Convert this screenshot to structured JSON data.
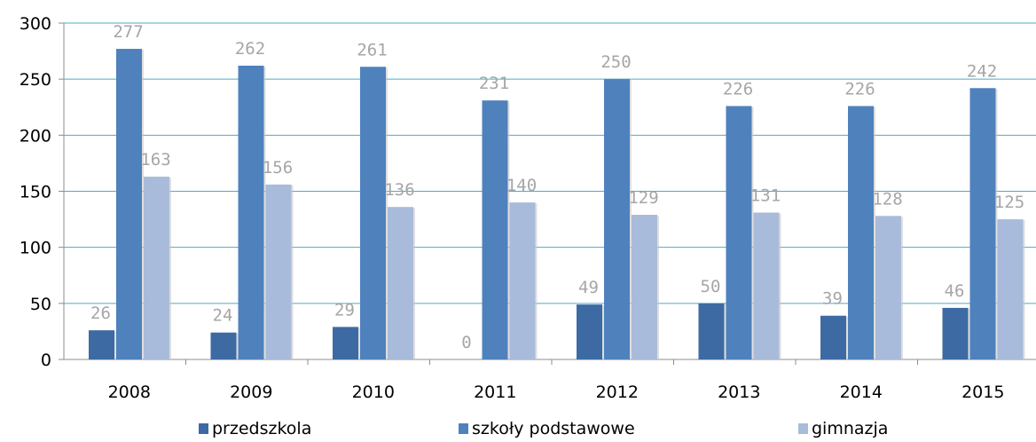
{
  "chart_data": {
    "type": "bar",
    "categories": [
      "2008",
      "2009",
      "2010",
      "2011",
      "2012",
      "2013",
      "2014",
      "2015"
    ],
    "series": [
      {
        "name": "przedszkola",
        "values": [
          26,
          24,
          29,
          0,
          49,
          50,
          39,
          46
        ],
        "color": "#3d6aa3"
      },
      {
        "name": "szkoły podstawowe",
        "values": [
          277,
          262,
          261,
          231,
          250,
          226,
          226,
          242
        ],
        "color": "#4f81bd"
      },
      {
        "name": "gimnazja",
        "values": [
          163,
          156,
          136,
          140,
          129,
          131,
          128,
          125
        ],
        "color": "#a9bbda"
      }
    ],
    "ylim": [
      0,
      300
    ],
    "yticks": [
      0,
      50,
      100,
      150,
      200,
      250,
      300
    ],
    "grid": true,
    "legend_position": "bottom",
    "data_label_color": "#a6a6a6",
    "gridline_color": "#4bacc6"
  }
}
